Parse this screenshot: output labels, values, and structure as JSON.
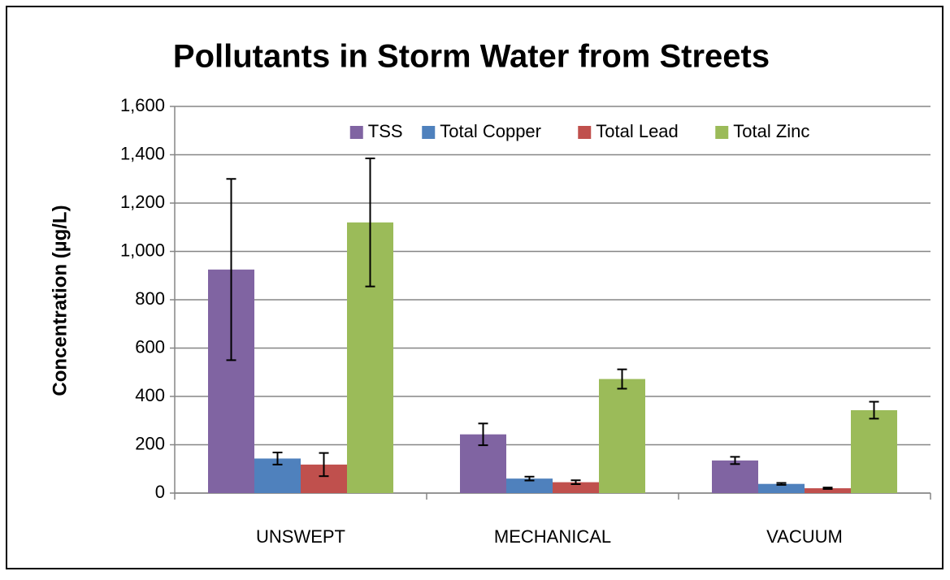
{
  "chart_data": {
    "type": "bar",
    "title": "Pollutants in Storm Water from Streets",
    "y_label": "Concentration (µg/L)",
    "categories": [
      "UNSWEPT",
      "MECHANICAL",
      "VACUUM"
    ],
    "series": [
      {
        "name": "TSS",
        "color": "#8064a2",
        "values": [
          925,
          243,
          135
        ],
        "errors": [
          375,
          45,
          15
        ]
      },
      {
        "name": "Total Copper",
        "color": "#4f81bd",
        "values": [
          143,
          60,
          38
        ],
        "errors": [
          25,
          8,
          4
        ]
      },
      {
        "name": "Total Lead",
        "color": "#c0504d",
        "values": [
          118,
          45,
          20
        ],
        "errors": [
          48,
          8,
          3
        ]
      },
      {
        "name": "Total Zinc",
        "color": "#9bbb59",
        "values": [
          1120,
          472,
          343
        ],
        "errors": [
          265,
          40,
          35
        ]
      }
    ],
    "ylim": [
      0,
      1600
    ],
    "yticks": [
      0,
      200,
      400,
      600,
      800,
      {
        "value": 1000,
        "label": "1,000"
      },
      {
        "value": 1200,
        "label": "1,200"
      },
      {
        "value": 1400,
        "label": "1,400"
      },
      {
        "value": 1600,
        "label": "1,600"
      }
    ],
    "grid": true,
    "legend": "top"
  }
}
